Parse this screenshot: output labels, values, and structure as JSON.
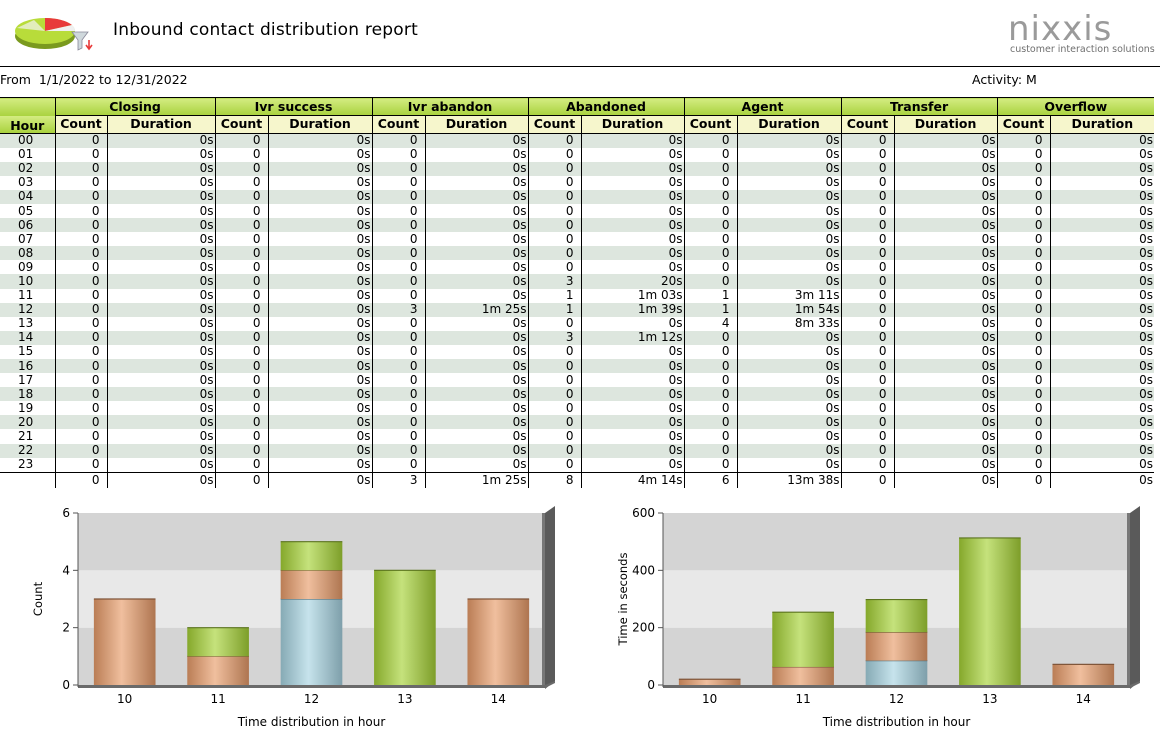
{
  "header": {
    "title": "Inbound contact distribution report",
    "brand": "nixxis",
    "brand_tagline": "customer interaction solutions"
  },
  "filter": {
    "range": "From  1/1/2022 to 12/31/2022",
    "activity": "Activity: M"
  },
  "table": {
    "hour_label": "Hour",
    "groups": [
      "Closing",
      "Ivr success",
      "Ivr abandon",
      "Abandoned",
      "Agent",
      "Transfer",
      "Overflow"
    ],
    "count_label": "Count",
    "duration_label": "Duration",
    "rows": [
      {
        "hour": "00",
        "cells": [
          "0",
          "0s",
          "0",
          "0s",
          "0",
          "0s",
          "0",
          "0s",
          "0",
          "0s",
          "0",
          "0s",
          "0",
          "0s"
        ]
      },
      {
        "hour": "01",
        "cells": [
          "0",
          "0s",
          "0",
          "0s",
          "0",
          "0s",
          "0",
          "0s",
          "0",
          "0s",
          "0",
          "0s",
          "0",
          "0s"
        ]
      },
      {
        "hour": "02",
        "cells": [
          "0",
          "0s",
          "0",
          "0s",
          "0",
          "0s",
          "0",
          "0s",
          "0",
          "0s",
          "0",
          "0s",
          "0",
          "0s"
        ]
      },
      {
        "hour": "03",
        "cells": [
          "0",
          "0s",
          "0",
          "0s",
          "0",
          "0s",
          "0",
          "0s",
          "0",
          "0s",
          "0",
          "0s",
          "0",
          "0s"
        ]
      },
      {
        "hour": "04",
        "cells": [
          "0",
          "0s",
          "0",
          "0s",
          "0",
          "0s",
          "0",
          "0s",
          "0",
          "0s",
          "0",
          "0s",
          "0",
          "0s"
        ]
      },
      {
        "hour": "05",
        "cells": [
          "0",
          "0s",
          "0",
          "0s",
          "0",
          "0s",
          "0",
          "0s",
          "0",
          "0s",
          "0",
          "0s",
          "0",
          "0s"
        ]
      },
      {
        "hour": "06",
        "cells": [
          "0",
          "0s",
          "0",
          "0s",
          "0",
          "0s",
          "0",
          "0s",
          "0",
          "0s",
          "0",
          "0s",
          "0",
          "0s"
        ]
      },
      {
        "hour": "07",
        "cells": [
          "0",
          "0s",
          "0",
          "0s",
          "0",
          "0s",
          "0",
          "0s",
          "0",
          "0s",
          "0",
          "0s",
          "0",
          "0s"
        ]
      },
      {
        "hour": "08",
        "cells": [
          "0",
          "0s",
          "0",
          "0s",
          "0",
          "0s",
          "0",
          "0s",
          "0",
          "0s",
          "0",
          "0s",
          "0",
          "0s"
        ]
      },
      {
        "hour": "09",
        "cells": [
          "0",
          "0s",
          "0",
          "0s",
          "0",
          "0s",
          "0",
          "0s",
          "0",
          "0s",
          "0",
          "0s",
          "0",
          "0s"
        ]
      },
      {
        "hour": "10",
        "cells": [
          "0",
          "0s",
          "0",
          "0s",
          "0",
          "0s",
          "3",
          "20s",
          "0",
          "0s",
          "0",
          "0s",
          "0",
          "0s"
        ]
      },
      {
        "hour": "11",
        "cells": [
          "0",
          "0s",
          "0",
          "0s",
          "0",
          "0s",
          "1",
          "1m 03s",
          "1",
          "3m 11s",
          "0",
          "0s",
          "0",
          "0s"
        ]
      },
      {
        "hour": "12",
        "cells": [
          "0",
          "0s",
          "0",
          "0s",
          "3",
          "1m 25s",
          "1",
          "1m 39s",
          "1",
          "1m 54s",
          "0",
          "0s",
          "0",
          "0s"
        ]
      },
      {
        "hour": "13",
        "cells": [
          "0",
          "0s",
          "0",
          "0s",
          "0",
          "0s",
          "0",
          "0s",
          "4",
          "8m 33s",
          "0",
          "0s",
          "0",
          "0s"
        ]
      },
      {
        "hour": "14",
        "cells": [
          "0",
          "0s",
          "0",
          "0s",
          "0",
          "0s",
          "3",
          "1m 12s",
          "0",
          "0s",
          "0",
          "0s",
          "0",
          "0s"
        ]
      },
      {
        "hour": "15",
        "cells": [
          "0",
          "0s",
          "0",
          "0s",
          "0",
          "0s",
          "0",
          "0s",
          "0",
          "0s",
          "0",
          "0s",
          "0",
          "0s"
        ]
      },
      {
        "hour": "16",
        "cells": [
          "0",
          "0s",
          "0",
          "0s",
          "0",
          "0s",
          "0",
          "0s",
          "0",
          "0s",
          "0",
          "0s",
          "0",
          "0s"
        ]
      },
      {
        "hour": "17",
        "cells": [
          "0",
          "0s",
          "0",
          "0s",
          "0",
          "0s",
          "0",
          "0s",
          "0",
          "0s",
          "0",
          "0s",
          "0",
          "0s"
        ]
      },
      {
        "hour": "18",
        "cells": [
          "0",
          "0s",
          "0",
          "0s",
          "0",
          "0s",
          "0",
          "0s",
          "0",
          "0s",
          "0",
          "0s",
          "0",
          "0s"
        ]
      },
      {
        "hour": "19",
        "cells": [
          "0",
          "0s",
          "0",
          "0s",
          "0",
          "0s",
          "0",
          "0s",
          "0",
          "0s",
          "0",
          "0s",
          "0",
          "0s"
        ]
      },
      {
        "hour": "20",
        "cells": [
          "0",
          "0s",
          "0",
          "0s",
          "0",
          "0s",
          "0",
          "0s",
          "0",
          "0s",
          "0",
          "0s",
          "0",
          "0s"
        ]
      },
      {
        "hour": "21",
        "cells": [
          "0",
          "0s",
          "0",
          "0s",
          "0",
          "0s",
          "0",
          "0s",
          "0",
          "0s",
          "0",
          "0s",
          "0",
          "0s"
        ]
      },
      {
        "hour": "22",
        "cells": [
          "0",
          "0s",
          "0",
          "0s",
          "0",
          "0s",
          "0",
          "0s",
          "0",
          "0s",
          "0",
          "0s",
          "0",
          "0s"
        ]
      },
      {
        "hour": "23",
        "cells": [
          "0",
          "0s",
          "0",
          "0s",
          "0",
          "0s",
          "0",
          "0s",
          "0",
          "0s",
          "0",
          "0s",
          "0",
          "0s"
        ]
      }
    ],
    "totals": [
      "0",
      "0s",
      "0",
      "0s",
      "3",
      "1m 25s",
      "8",
      "4m 14s",
      "6",
      "13m 38s",
      "0",
      "0s",
      "0",
      "0s"
    ]
  },
  "colors": {
    "header_green": "#a9d23e",
    "subheader_yellow": "#f6f6cc",
    "row_alt": "#dde6de",
    "series_blue": "#a8d4e2",
    "series_orange": "#e89c6a",
    "series_green": "#a6d236"
  },
  "chart_data": [
    {
      "type": "bar",
      "stacked": true,
      "categories": [
        "10",
        "11",
        "12",
        "13",
        "14"
      ],
      "series": [
        {
          "color": "#a8d4e2",
          "values": [
            0,
            0,
            3,
            0,
            0
          ]
        },
        {
          "color": "#e89c6a",
          "values": [
            3,
            1,
            1,
            0,
            3
          ]
        },
        {
          "color": "#a6d236",
          "values": [
            0,
            1,
            1,
            4,
            0
          ]
        }
      ],
      "xlabel": "Time distribution in hour",
      "ylabel": "Count",
      "ylim": [
        0,
        6
      ],
      "yticks": [
        "0",
        "2",
        "4",
        "6"
      ],
      "grid": true
    },
    {
      "type": "bar",
      "stacked": true,
      "categories": [
        "10",
        "11",
        "12",
        "13",
        "14"
      ],
      "series": [
        {
          "color": "#a8d4e2",
          "values": [
            0,
            0,
            85,
            0,
            0
          ]
        },
        {
          "color": "#e89c6a",
          "values": [
            20,
            63,
            99,
            0,
            72
          ]
        },
        {
          "color": "#a6d236",
          "values": [
            0,
            191,
            114,
            513,
            0
          ]
        }
      ],
      "xlabel": "Time distribution in hour",
      "ylabel": "Time in seconds",
      "ylim": [
        0,
        600
      ],
      "yticks": [
        "0",
        "200",
        "400",
        "600"
      ],
      "grid": true
    }
  ]
}
